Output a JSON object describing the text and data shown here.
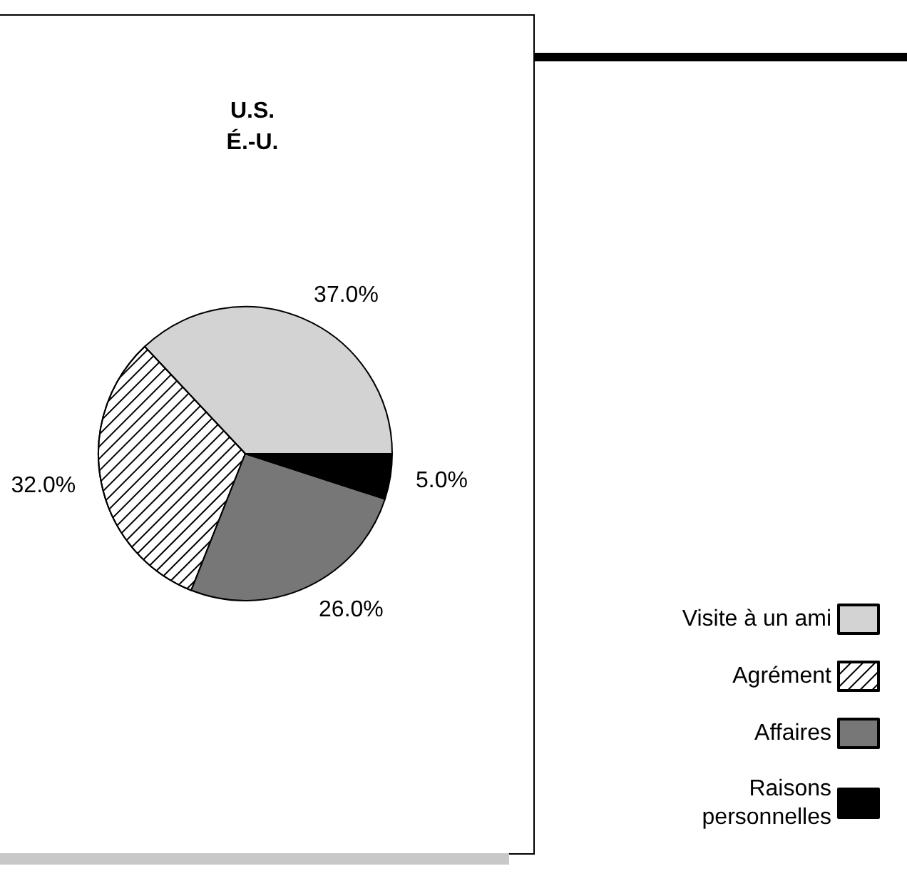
{
  "chart_data": {
    "type": "pie",
    "title": "U.S.\nÉ.-U.",
    "categories": [
      "Visite à un ami",
      "Agrément",
      "Affaires",
      "Raisons\npersonnelles"
    ],
    "values": [
      37,
      32,
      26,
      5
    ],
    "value_labels": [
      "37.0%",
      "32.0%",
      "26.0%",
      "5.0%"
    ],
    "colors": [
      "#d3d3d3",
      "#ffffff",
      "#777777",
      "#000000"
    ],
    "legend": "bottom right"
  }
}
